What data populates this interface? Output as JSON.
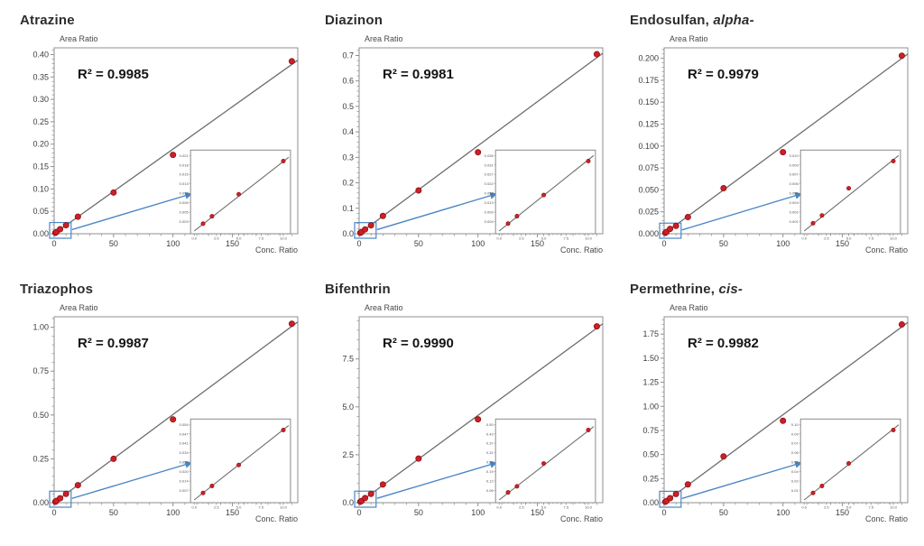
{
  "figure": {
    "y_axis_label": "Area Ratio",
    "x_axis_label": "Conc. Ratio"
  },
  "colors": {
    "background": "#ffffff",
    "axis": "#8f8f8f",
    "tick_text": "#3c3c3c",
    "axis_label_text": "#4a4a4a",
    "fit_line": "#6e6e6e",
    "point_fill": "#cc2027",
    "point_edge": "#8e1116",
    "zoom_blue": "#4a86c4",
    "r2_text": "#141414",
    "title_text": "#2d2d2d",
    "inset_border": "#8a8a8a",
    "inset_tick_text": "#555555"
  },
  "chart_data": [
    {
      "type": "scatter",
      "title": "Atrazine",
      "title_italic": "",
      "r2_label": "R² = 0.9985",
      "x": [
        1,
        2,
        5,
        10,
        20,
        50,
        100,
        200
      ],
      "y": [
        0.002,
        0.004,
        0.01,
        0.019,
        0.038,
        0.092,
        0.176,
        0.385
      ],
      "xlim": [
        0,
        205
      ],
      "xticks": [
        0,
        50,
        100,
        150
      ],
      "x_minor_step": 10,
      "ylim": [
        0,
        0.415
      ],
      "ytick_step": 0.05,
      "ytick_decimals": 2,
      "inset": {
        "x_max": 10,
        "xticks": [
          0.0,
          2.5,
          5.0,
          7.5,
          10.0
        ]
      },
      "legend": "none",
      "grid": false
    },
    {
      "type": "scatter",
      "title": "Diazinon",
      "title_italic": "",
      "r2_label": "R² = 0.9981",
      "x": [
        1,
        2,
        5,
        10,
        20,
        50,
        100,
        200
      ],
      "y": [
        0.0035,
        0.007,
        0.017,
        0.033,
        0.07,
        0.17,
        0.32,
        0.705
      ],
      "xlim": [
        0,
        205
      ],
      "xticks": [
        0,
        50,
        100,
        150
      ],
      "x_minor_step": 10,
      "ylim": [
        0,
        0.73
      ],
      "ytick_step": 0.1,
      "ytick_decimals": 1,
      "inset": {
        "x_max": 10,
        "xticks": [
          0.0,
          2.5,
          5.0,
          7.5,
          10.0
        ]
      },
      "legend": "none",
      "grid": false
    },
    {
      "type": "scatter",
      "title": "Endosulfan, ",
      "title_italic": "alpha-",
      "r2_label": "R² = 0.9979",
      "x": [
        1,
        2,
        5,
        10,
        20,
        50,
        100,
        200
      ],
      "y": [
        0.001,
        0.002,
        0.0055,
        0.009,
        0.019,
        0.052,
        0.093,
        0.203
      ],
      "xlim": [
        0,
        205
      ],
      "xticks": [
        0,
        50,
        100,
        150
      ],
      "x_minor_step": 10,
      "ylim": [
        0,
        0.212
      ],
      "ytick_step": 0.025,
      "ytick_decimals": 3,
      "inset": {
        "x_max": 10,
        "xticks": [
          0.0,
          2.5,
          5.0,
          7.5,
          10.0
        ]
      },
      "legend": "none",
      "grid": false
    },
    {
      "type": "scatter",
      "title": "Triazophos",
      "title_italic": "",
      "r2_label": "R² = 0.9987",
      "x": [
        1,
        2,
        5,
        10,
        20,
        50,
        100,
        200
      ],
      "y": [
        0.005,
        0.01,
        0.025,
        0.05,
        0.1,
        0.25,
        0.475,
        1.02
      ],
      "xlim": [
        0,
        205
      ],
      "xticks": [
        0,
        50,
        100,
        150
      ],
      "x_minor_step": 10,
      "ylim": [
        0,
        1.06
      ],
      "ytick_step": 0.25,
      "ytick_decimals": 2,
      "inset": {
        "x_max": 10,
        "xticks": [
          0.0,
          2.5,
          5.0,
          7.5,
          10.0
        ]
      },
      "legend": "none",
      "grid": false
    },
    {
      "type": "scatter",
      "title": "Bifenthrin",
      "title_italic": "",
      "r2_label": "R² = 0.9990",
      "x": [
        1,
        2,
        5,
        10,
        20,
        50,
        100,
        200
      ],
      "y": [
        0.05,
        0.09,
        0.24,
        0.46,
        0.95,
        2.3,
        4.35,
        9.2
      ],
      "xlim": [
        0,
        205
      ],
      "xticks": [
        0,
        50,
        100,
        150
      ],
      "x_minor_step": 10,
      "ylim": [
        0,
        9.7
      ],
      "ytick_step": 2.5,
      "ytick_decimals": 1,
      "inset": {
        "x_max": 10,
        "xticks": [
          0.0,
          2.5,
          5.0,
          7.5,
          10.0
        ]
      },
      "legend": "none",
      "grid": false
    },
    {
      "type": "scatter",
      "title": "Permethrine, ",
      "title_italic": "cis-",
      "r2_label": "R² = 0.9982",
      "x": [
        1,
        2,
        5,
        10,
        20,
        50,
        100,
        200
      ],
      "y": [
        0.009,
        0.018,
        0.047,
        0.09,
        0.19,
        0.48,
        0.85,
        1.85
      ],
      "xlim": [
        0,
        205
      ],
      "xticks": [
        0,
        50,
        100,
        150
      ],
      "x_minor_step": 10,
      "ylim": [
        0,
        1.93
      ],
      "ytick_step": 0.25,
      "ytick_decimals": 2,
      "inset": {
        "x_max": 10,
        "xticks": [
          0.0,
          2.5,
          5.0,
          7.5,
          10.0
        ]
      },
      "legend": "none",
      "grid": false
    }
  ]
}
